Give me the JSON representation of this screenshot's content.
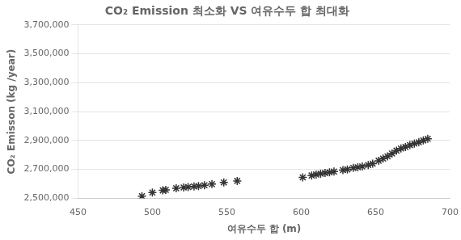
{
  "chart_data": {
    "type": "scatter",
    "title": "CO₂ Emission 최소화 VS 여유수두 합 최대화",
    "x_label": "여유수두 합 (m)",
    "y_label": "CO₂ Emisson (kg /year)",
    "x": [
      493,
      500,
      507,
      509,
      516,
      521,
      524,
      528,
      531,
      535,
      540,
      548,
      557,
      601,
      607,
      610,
      613,
      616,
      619,
      622,
      628,
      631,
      635,
      638,
      641,
      645,
      648,
      652,
      655,
      658,
      661,
      664,
      667,
      670,
      673,
      676,
      679,
      682,
      685
    ],
    "values": [
      2515000,
      2540000,
      2555000,
      2558000,
      2570000,
      2575000,
      2578000,
      2582000,
      2585000,
      2590000,
      2598000,
      2610000,
      2620000,
      2645000,
      2658000,
      2665000,
      2670000,
      2675000,
      2680000,
      2685000,
      2695000,
      2700000,
      2710000,
      2715000,
      2720000,
      2730000,
      2740000,
      2760000,
      2775000,
      2790000,
      2810000,
      2830000,
      2845000,
      2855000,
      2868000,
      2878000,
      2888000,
      2900000,
      2912000
    ],
    "marker": "star",
    "color": "#333333",
    "xlim": [
      450,
      700
    ],
    "ylim": [
      2500000,
      3700000
    ],
    "xticks": [
      450,
      500,
      550,
      600,
      650,
      700
    ],
    "yticks": [
      {
        "value": 2500000,
        "label": "2,500,000"
      },
      {
        "value": 2700000,
        "label": "2,700,000"
      },
      {
        "value": 2900000,
        "label": "2,900,000"
      },
      {
        "value": 3100000,
        "label": "3,100,000"
      },
      {
        "value": 3300000,
        "label": "3,300,000"
      },
      {
        "value": 3500000,
        "label": "3,500,000"
      },
      {
        "value": 3700000,
        "label": "3,700,000"
      }
    ],
    "grid": "y"
  }
}
